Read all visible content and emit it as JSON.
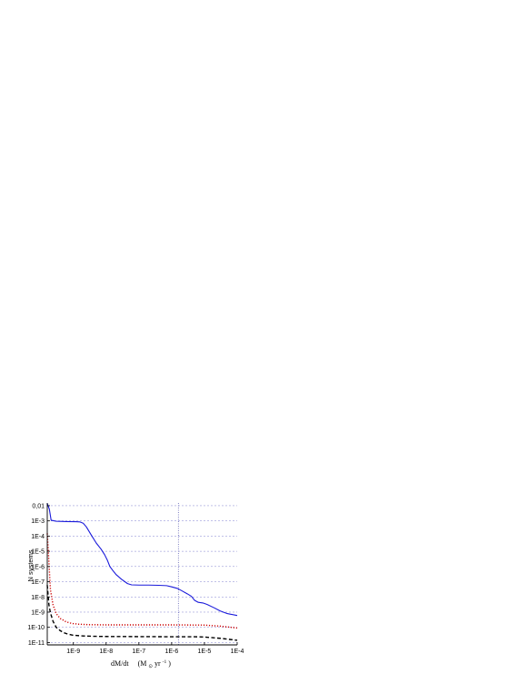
{
  "chart_data": {
    "type": "line",
    "xlabel_main": "dM/dt",
    "xlabel_unit_prefix": "(M",
    "xlabel_unit_sub": "⊙",
    "xlabel_unit_mid": " yr",
    "xlabel_unit_sup": "-1",
    "xlabel_unit_close": ")",
    "ylabel": "N systems",
    "x_scale": "log",
    "y_scale": "log",
    "xlim": [
      1.6e-10,
      0.0001
    ],
    "ylim": [
      7e-12,
      0.015
    ],
    "x_ticks": [
      {
        "value": 1e-09,
        "label": "1E-9"
      },
      {
        "value": 1e-08,
        "label": "1E-8"
      },
      {
        "value": 1e-07,
        "label": "1E-7"
      },
      {
        "value": 1e-06,
        "label": "1E-6"
      },
      {
        "value": 1e-05,
        "label": "1E-5"
      },
      {
        "value": 0.0001,
        "label": "1E-4"
      }
    ],
    "y_ticks": [
      {
        "value": 0.01,
        "label": "0,01"
      },
      {
        "value": 0.001,
        "label": "1E-3"
      },
      {
        "value": 0.0001,
        "label": "1E-4"
      },
      {
        "value": 1e-05,
        "label": "1E-5"
      },
      {
        "value": 1e-06,
        "label": "1E-6"
      },
      {
        "value": 1e-07,
        "label": "1E-7"
      },
      {
        "value": 1e-08,
        "label": "1E-8"
      },
      {
        "value": 1e-09,
        "label": "1E-9"
      },
      {
        "value": 1e-10,
        "label": "1E-10"
      },
      {
        "value": 1e-11,
        "label": "1E-11"
      }
    ],
    "grid": "horizontal dashed",
    "vertical_marker_x": 1.6e-06,
    "series": [
      {
        "color": "#1a1adb",
        "style": "solid",
        "points": [
          [
            1.6e-10,
            0.014
          ],
          [
            1.85e-10,
            0.006
          ],
          [
            2.1e-10,
            0.0011
          ],
          [
            3e-10,
            0.00095
          ],
          [
            6e-10,
            0.0009
          ],
          [
            1.2e-09,
            0.00088
          ],
          [
            1.6e-09,
            0.00085
          ],
          [
            2e-09,
            0.0007
          ],
          [
            2.5e-09,
            0.0004
          ],
          [
            3.5e-09,
            0.00012
          ],
          [
            5e-09,
            3.5e-05
          ],
          [
            7e-09,
            1.4e-05
          ],
          [
            9e-09,
            6e-06
          ],
          [
            1.1e-08,
            2.5e-06
          ],
          [
            1.3e-08,
            1e-06
          ],
          [
            1.6e-08,
            5.5e-07
          ],
          [
            2e-08,
            3e-07
          ],
          [
            3e-08,
            1.4e-07
          ],
          [
            4.5e-08,
            7.5e-08
          ],
          [
            6e-08,
            6.2e-08
          ],
          [
            1e-07,
            6e-08
          ],
          [
            2e-07,
            6e-08
          ],
          [
            4e-07,
            5.8e-08
          ],
          [
            7e-07,
            5.5e-08
          ],
          [
            1e-06,
            4.6e-08
          ],
          [
            1.5e-06,
            3.6e-08
          ],
          [
            2e-06,
            2.6e-08
          ],
          [
            3e-06,
            1.6e-08
          ],
          [
            4e-06,
            1.1e-08
          ],
          [
            5e-06,
            6e-09
          ],
          [
            6.5e-06,
            4.4e-09
          ],
          [
            9e-06,
            4e-09
          ],
          [
            1.2e-05,
            3.2e-09
          ],
          [
            2e-05,
            1.9e-09
          ],
          [
            3e-05,
            1.2e-09
          ],
          [
            5e-05,
            8e-10
          ],
          [
            0.0001,
            6e-10
          ]
        ]
      },
      {
        "color": "#cc0000",
        "style": "dotted",
        "points": [
          [
            1.6e-10,
            0.00015
          ],
          [
            1.75e-10,
            6e-06
          ],
          [
            2e-10,
            3e-08
          ],
          [
            2.4e-10,
            3e-09
          ],
          [
            3e-10,
            8e-10
          ],
          [
            4e-10,
            3.8e-10
          ],
          [
            6e-10,
            2.3e-10
          ],
          [
            9e-10,
            1.8e-10
          ],
          [
            1.5e-09,
            1.6e-10
          ],
          [
            3e-09,
            1.5e-10
          ],
          [
            1e-08,
            1.45e-10
          ],
          [
            1e-07,
            1.45e-10
          ],
          [
            1e-06,
            1.45e-10
          ],
          [
            1e-05,
            1.4e-10
          ],
          [
            3e-05,
            1.2e-10
          ],
          [
            0.0001,
            9e-11
          ]
        ]
      },
      {
        "color": "#000000",
        "style": "dashed",
        "points": [
          [
            1.6e-10,
            6e-08
          ],
          [
            1.8e-10,
            3e-09
          ],
          [
            2e-10,
            9e-10
          ],
          [
            2.4e-10,
            2.5e-10
          ],
          [
            3e-10,
            1e-10
          ],
          [
            4e-10,
            6e-11
          ],
          [
            5e-10,
            4.5e-11
          ],
          [
            7e-10,
            3.5e-11
          ],
          [
            1e-09,
            3e-11
          ],
          [
            2e-09,
            2.7e-11
          ],
          [
            5e-09,
            2.55e-11
          ],
          [
            1e-08,
            2.5e-11
          ],
          [
            1e-07,
            2.45e-11
          ],
          [
            1e-06,
            2.4e-11
          ],
          [
            5e-06,
            2.4e-11
          ],
          [
            1e-05,
            2.3e-11
          ],
          [
            3e-05,
            1.9e-11
          ],
          [
            6e-05,
            1.6e-11
          ],
          [
            0.0001,
            1.4e-11
          ]
        ]
      }
    ]
  }
}
